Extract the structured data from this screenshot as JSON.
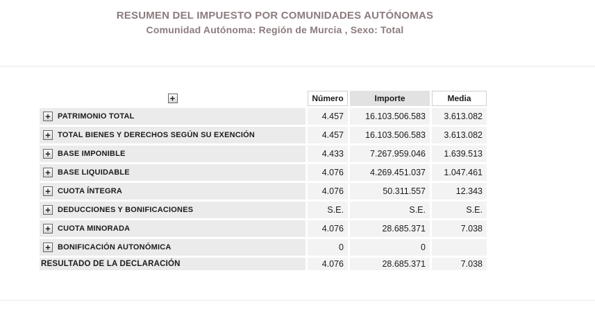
{
  "header": {
    "title": "RESUMEN DEL IMPUESTO POR COMUNIDADES AUTÓNOMAS",
    "subtitle": "Comunidad Autónoma: Región de Murcia , Sexo: Total"
  },
  "table": {
    "expand_icon_glyph": "+",
    "columns": [
      "Número",
      "Importe",
      "Media"
    ],
    "rows": [
      {
        "label": "PATRIMONIO TOTAL",
        "expandable": true,
        "numero": "4.457",
        "importe": "16.103.506.583",
        "media": "3.613.082"
      },
      {
        "label": "TOTAL BIENES Y DERECHOS SEGÚN SU EXENCIÓN",
        "expandable": true,
        "numero": "4.457",
        "importe": "16.103.506.583",
        "media": "3.613.082"
      },
      {
        "label": "BASE IMPONIBLE",
        "expandable": true,
        "numero": "4.433",
        "importe": "7.267.959.046",
        "media": "1.639.513"
      },
      {
        "label": "BASE LIQUIDABLE",
        "expandable": true,
        "numero": "4.076",
        "importe": "4.269.451.037",
        "media": "1.047.461"
      },
      {
        "label": "CUOTA ÍNTEGRA",
        "expandable": true,
        "numero": "4.076",
        "importe": "50.311.557",
        "media": "12.343"
      },
      {
        "label": "DEDUCCIONES Y BONIFICACIONES",
        "expandable": true,
        "numero": "S.E.",
        "importe": "S.E.",
        "media": "S.E."
      },
      {
        "label": "CUOTA MINORADA",
        "expandable": true,
        "numero": "4.076",
        "importe": "28.685.371",
        "media": "7.038"
      },
      {
        "label": "BONIFICACIÓN AUTONÓMICA",
        "expandable": true,
        "numero": "0",
        "importe": "0",
        "media": ""
      },
      {
        "label": "RESULTADO DE LA DECLARACIÓN",
        "expandable": false,
        "numero": "4.076",
        "importe": "28.685.371",
        "media": "7.038"
      }
    ]
  },
  "colors": {
    "title_text": "#8c7b7d",
    "label_cell_bg": "#ebebeb",
    "value_cell_bg": "#f3f3f3",
    "importe_header_bg": "#e2e2e2",
    "separator_line": "#e9e9e9",
    "body_text": "#1b1b1b"
  }
}
